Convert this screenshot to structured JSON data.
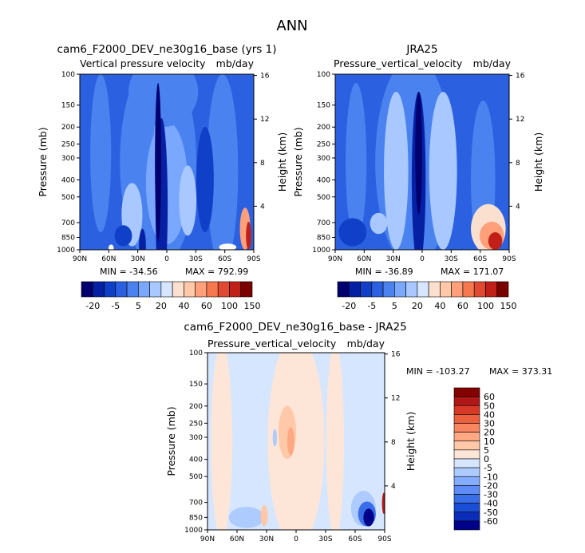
{
  "main_title": "ANN",
  "colors": {
    "background": "#ffffff",
    "abs_levels": [
      "#00006e",
      "#0620a3",
      "#1040c8",
      "#2b60e0",
      "#4a82f0",
      "#7aa8ff",
      "#a8c8ff",
      "#d6e6ff",
      "#fbe0d0",
      "#ffc8a8",
      "#ffa07a",
      "#f5784e",
      "#e04a30",
      "#c02018",
      "#7a0000"
    ],
    "diff_levels": [
      "#00008a",
      "#0a2cb8",
      "#1a4ed6",
      "#3a6ee8",
      "#5e8cf4",
      "#84acff",
      "#aecbff",
      "#d6e6ff",
      "#fde6d8",
      "#ffc8a8",
      "#ffa883",
      "#f88661",
      "#ec6040",
      "#d63a26",
      "#b01818",
      "#840000"
    ]
  },
  "chart_data": [
    {
      "type": "heatmap",
      "title": "cam6_F2000_DEV_ne30g16_base (yrs 1)",
      "subtitle_left": "Vertical pressure velocity",
      "subtitle_right": "mb/day",
      "ylabel": "Pressure (mb)",
      "ylabel_right": "Height (km)",
      "x_ticks": [
        "90N",
        "60N",
        "30N",
        "0",
        "30S",
        "60S",
        "90S"
      ],
      "y_ticks": [
        "100",
        "150",
        "200",
        "250",
        "300",
        "400",
        "500",
        "700",
        "850",
        "1000"
      ],
      "y_right_ticks": [
        "16",
        "12",
        "8",
        "4"
      ],
      "min_label": "MIN = -34.56",
      "max_label": "MAX = 792.99",
      "colorbar_ticks": [
        "-20",
        "-5",
        "5",
        "20",
        "40",
        "60",
        "100",
        "150"
      ],
      "colorbar_orientation": "horizontal",
      "scale": "log-pressure"
    },
    {
      "type": "heatmap",
      "title": "JRA25",
      "subtitle_left": "Pressure_vertical_velocity",
      "subtitle_right": "mb/day",
      "ylabel": "Pressure (mb)",
      "ylabel_right": "Height (km)",
      "x_ticks": [
        "90N",
        "60N",
        "30N",
        "0",
        "30S",
        "60S",
        "90S"
      ],
      "y_ticks": [
        "100",
        "150",
        "200",
        "250",
        "300",
        "400",
        "500",
        "700",
        "850",
        "1000"
      ],
      "y_right_ticks": [
        "16",
        "12",
        "8",
        "4"
      ],
      "min_label": "MIN = -36.89",
      "max_label": "MAX = 171.07",
      "colorbar_ticks": [
        "-20",
        "-5",
        "5",
        "20",
        "40",
        "60",
        "100",
        "150"
      ],
      "colorbar_orientation": "horizontal",
      "scale": "log-pressure"
    },
    {
      "type": "heatmap",
      "title": "cam6_F2000_DEV_ne30g16_base - JRA25",
      "subtitle_left": "Pressure_vertical_velocity",
      "subtitle_right": "mb/day",
      "ylabel": "Pressure (mb)",
      "ylabel_right": "Height (km)",
      "x_ticks": [
        "90N",
        "60N",
        "30N",
        "0",
        "30S",
        "60S",
        "90S"
      ],
      "y_ticks": [
        "100",
        "150",
        "200",
        "250",
        "300",
        "400",
        "500",
        "700",
        "850",
        "1000"
      ],
      "y_right_ticks": [
        "16",
        "12",
        "8",
        "4"
      ],
      "min_label": "MIN = -103.27",
      "max_label": "MAX = 373.31",
      "colorbar_ticks": [
        "60",
        "50",
        "40",
        "30",
        "20",
        "10",
        "5",
        "0",
        "-5",
        "-10",
        "-20",
        "-30",
        "-40",
        "-50",
        "-60"
      ],
      "colorbar_orientation": "vertical",
      "scale": "log-pressure"
    }
  ]
}
